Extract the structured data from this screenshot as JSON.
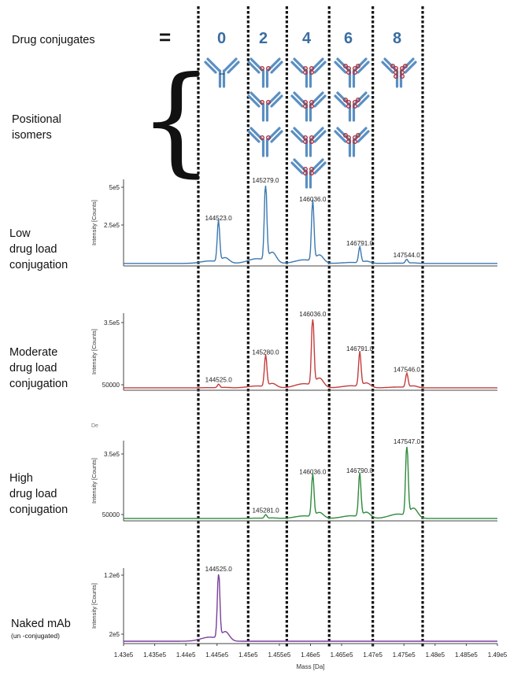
{
  "header": {
    "drug_conjugates_label": "Drug conjugates",
    "equals": "=",
    "dar_values": [
      "0",
      "2",
      "4",
      "6",
      "8"
    ],
    "positional_isomers_label": [
      "Positional",
      "isomers"
    ],
    "antibody_color": "#5a8fc2",
    "drug_color": "#b0303a"
  },
  "row_labels": {
    "low": [
      "Low",
      "drug load",
      "conjugation"
    ],
    "moderate": [
      "Moderate",
      "drug load",
      "conjugation"
    ],
    "high": [
      "High",
      "drug load",
      "conjugation"
    ],
    "naked": [
      "Naked mAb"
    ],
    "naked_sub": "(un  -conjugated)"
  },
  "stray_text": "De",
  "chart_data": [
    {
      "type": "line",
      "name": "low",
      "color": "#3b78b0",
      "ylabel": "Intensity [Counts]",
      "yticks": [
        "5e5",
        "2.5e5"
      ],
      "peaks": [
        {
          "mass": 144523.0,
          "label": "144523.0",
          "rel": 0.52
        },
        {
          "mass": 145279.0,
          "label": "145279.0",
          "rel": 1.0
        },
        {
          "mass": 146036.0,
          "label": "146036.0",
          "rel": 0.76
        },
        {
          "mass": 146791.0,
          "label": "146791.0",
          "rel": 0.2
        },
        {
          "mass": 147544.0,
          "label": "147544.0",
          "rel": 0.05
        }
      ]
    },
    {
      "type": "line",
      "name": "moderate",
      "color": "#c43c3c",
      "ylabel": "Intensity [Counts]",
      "yticks": [
        "3.5e5",
        "50000"
      ],
      "peaks": [
        {
          "mass": 144525.0,
          "label": "144525.0",
          "rel": 0.05
        },
        {
          "mass": 145280.0,
          "label": "145280.0",
          "rel": 0.45
        },
        {
          "mass": 146036.0,
          "label": "146036.0",
          "rel": 1.0
        },
        {
          "mass": 146791.0,
          "label": "146791.0",
          "rel": 0.5
        },
        {
          "mass": 147546.0,
          "label": "147546.0",
          "rel": 0.2
        }
      ]
    },
    {
      "type": "line",
      "name": "high",
      "color": "#2e8b3c",
      "ylabel": "Intensity [Counts]",
      "yticks": [
        "3.5e5",
        "50000"
      ],
      "peaks": [
        {
          "mass": 145281.0,
          "label": "145281.0",
          "rel": 0.05
        },
        {
          "mass": 146036.0,
          "label": "146036.0",
          "rel": 0.58
        },
        {
          "mass": 146790.0,
          "label": "146790.0",
          "rel": 0.6
        },
        {
          "mass": 147547.0,
          "label": "147547.0",
          "rel": 1.0
        }
      ]
    },
    {
      "type": "line",
      "name": "naked",
      "color": "#7a3f9a",
      "ylabel": "Intensity [Counts]",
      "yticks": [
        "1.2e6",
        "2e5"
      ],
      "peaks": [
        {
          "mass": 144525.0,
          "label": "144525.0",
          "rel": 1.0
        }
      ]
    }
  ],
  "x_axis": {
    "xlabel": "Mass [Da]",
    "xlim": [
      143000,
      149000
    ],
    "ticks": [
      {
        "v": 143000,
        "label": "1.43e5"
      },
      {
        "v": 143500,
        "label": "1.435e5"
      },
      {
        "v": 144000,
        "label": "1.44e5"
      },
      {
        "v": 144500,
        "label": "1.445e5"
      },
      {
        "v": 145000,
        "label": "1.45e5"
      },
      {
        "v": 145500,
        "label": "1.455e5"
      },
      {
        "v": 146000,
        "label": "1.46e5"
      },
      {
        "v": 146500,
        "label": "1.465e5"
      },
      {
        "v": 147000,
        "label": "1.47e5"
      },
      {
        "v": 147500,
        "label": "1.475e5"
      },
      {
        "v": 148000,
        "label": "1.48e5"
      },
      {
        "v": 148500,
        "label": "1.485e5"
      },
      {
        "v": 149000,
        "label": "1.49e5"
      }
    ]
  },
  "dashed_divider_masses": [
    144200,
    145000,
    145620,
    146300,
    147000,
    147800
  ],
  "isomer_drug_counts": [
    [
      0,
      2,
      4,
      6,
      8
    ],
    [
      2,
      4,
      6
    ],
    [
      2,
      4,
      6
    ],
    [
      4
    ]
  ]
}
